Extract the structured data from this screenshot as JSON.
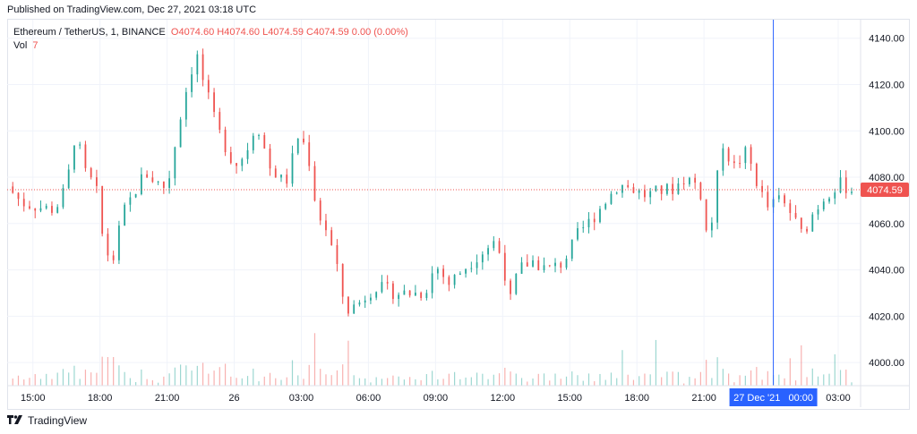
{
  "published": "Published on TradingView.com, Dec 27, 2021 03:18 UTC",
  "brand": "TradingView",
  "legend": {
    "symbol": "Ethereum / TetherUS, 1, BINANCE",
    "open_label": "O",
    "open": "4074.60",
    "high_label": "H",
    "high": "4074.60",
    "low_label": "L",
    "low": "4074.59",
    "close_label": "C",
    "close": "4074.59",
    "change": "0.00 (0.00%)",
    "vol_label": "Vol",
    "vol": "7"
  },
  "crosshair_time_label": "27 Dec '21   00:00",
  "colors": {
    "up": "#26a69a",
    "down": "#ef5350",
    "grid": "#f0f3fa",
    "crosshair": "#2962ff",
    "price_line": "#ef5350"
  },
  "chart_data": {
    "type": "candlestick",
    "title": "Ethereum / TetherUS, 1, BINANCE",
    "y_ticks": [
      4000,
      4020,
      4040,
      4060,
      4080,
      4100,
      4120,
      4140
    ],
    "ylim": [
      3990,
      4148
    ],
    "x_ticks": [
      "15:00",
      "18:00",
      "21:00",
      "26",
      "03:00",
      "06:00",
      "09:00",
      "12:00",
      "15:00",
      "18:00",
      "21:00",
      "00:00",
      "03:00"
    ],
    "x_tick_hours": [
      0,
      3,
      6,
      9,
      12,
      15,
      18,
      21,
      24,
      27,
      30,
      33,
      36
    ],
    "x_range_hours": [
      -1.15,
      37.0
    ],
    "last_price": 4074.59,
    "crosshair_hour": 33.1,
    "price_path": [
      [
        -1.15,
        4076
      ],
      [
        -0.5,
        4069
      ],
      [
        0.3,
        4067
      ],
      [
        1.0,
        4066
      ],
      [
        1.5,
        4076
      ],
      [
        1.9,
        4099
      ],
      [
        2.4,
        4080
      ],
      [
        2.8,
        4077
      ],
      [
        3.2,
        4048
      ],
      [
        3.6,
        4045
      ],
      [
        4.0,
        4064
      ],
      [
        4.4,
        4071
      ],
      [
        5.0,
        4082
      ],
      [
        5.5,
        4078
      ],
      [
        6.0,
        4075
      ],
      [
        6.2,
        4086
      ],
      [
        6.7,
        4112
      ],
      [
        7.3,
        4134
      ],
      [
        7.6,
        4122
      ],
      [
        8.2,
        4102
      ],
      [
        9.0,
        4085
      ],
      [
        9.5,
        4090
      ],
      [
        10.0,
        4104
      ],
      [
        10.6,
        4084
      ],
      [
        11.3,
        4077
      ],
      [
        11.9,
        4099
      ],
      [
        12.3,
        4090
      ],
      [
        12.7,
        4065
      ],
      [
        13.2,
        4056
      ],
      [
        13.6,
        4040
      ],
      [
        14.0,
        4022
      ],
      [
        14.6,
        4026
      ],
      [
        15.3,
        4033
      ],
      [
        16.2,
        4030
      ],
      [
        17.0,
        4030
      ],
      [
        17.5,
        4030
      ],
      [
        18.0,
        4042
      ],
      [
        18.6,
        4034
      ],
      [
        19.4,
        4042
      ],
      [
        20.0,
        4047
      ],
      [
        20.6,
        4052
      ],
      [
        21.0,
        4045
      ],
      [
        21.3,
        4025
      ],
      [
        21.7,
        4040
      ],
      [
        22.3,
        4044
      ],
      [
        23.0,
        4040
      ],
      [
        23.7,
        4043
      ],
      [
        24.4,
        4056
      ],
      [
        25.0,
        4062
      ],
      [
        25.6,
        4070
      ],
      [
        26.2,
        4077
      ],
      [
        26.8,
        4075
      ],
      [
        27.4,
        4072
      ],
      [
        28.0,
        4074
      ],
      [
        28.6,
        4075
      ],
      [
        29.2,
        4080
      ],
      [
        29.8,
        4076
      ],
      [
        30.2,
        4050
      ],
      [
        30.5,
        4072
      ],
      [
        30.8,
        4096
      ],
      [
        31.3,
        4084
      ],
      [
        31.9,
        4091
      ],
      [
        32.5,
        4074
      ],
      [
        32.9,
        4066
      ],
      [
        33.3,
        4071
      ],
      [
        33.8,
        4066
      ],
      [
        34.4,
        4055
      ],
      [
        34.9,
        4065
      ],
      [
        35.5,
        4073
      ],
      [
        36.1,
        4077
      ],
      [
        36.6,
        4074.59
      ]
    ]
  }
}
